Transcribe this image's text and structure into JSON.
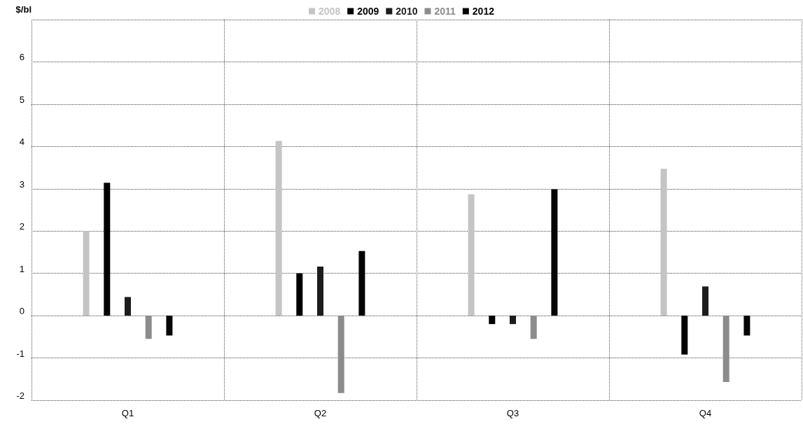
{
  "chart_data": {
    "type": "bar",
    "ylabel": "$/bl",
    "categories": [
      "Q1",
      "Q2",
      "Q3",
      "Q4"
    ],
    "series": [
      {
        "name": "2008",
        "color": "#c4c4c4",
        "values": [
          2.0,
          4.13,
          2.87,
          3.47
        ]
      },
      {
        "name": "2009",
        "color": "#000000",
        "values": [
          3.14,
          1.0,
          -0.2,
          -0.92
        ]
      },
      {
        "name": "2010",
        "color": "#1c1c1c",
        "values": [
          0.44,
          1.16,
          -0.2,
          0.69
        ]
      },
      {
        "name": "2011",
        "color": "#8c8c8c",
        "values": [
          -0.55,
          -1.83,
          -0.55,
          -1.57
        ]
      },
      {
        "name": "2012",
        "color": "#050505",
        "values": [
          -0.47,
          1.53,
          2.99,
          -0.47
        ]
      }
    ],
    "ylim": [
      -2,
      7
    ],
    "yticks": [
      -2,
      -1,
      0,
      1,
      2,
      3,
      4,
      5,
      6,
      {
        "value": 7,
        "label": null
      }
    ],
    "grid": true,
    "legend": "top"
  }
}
